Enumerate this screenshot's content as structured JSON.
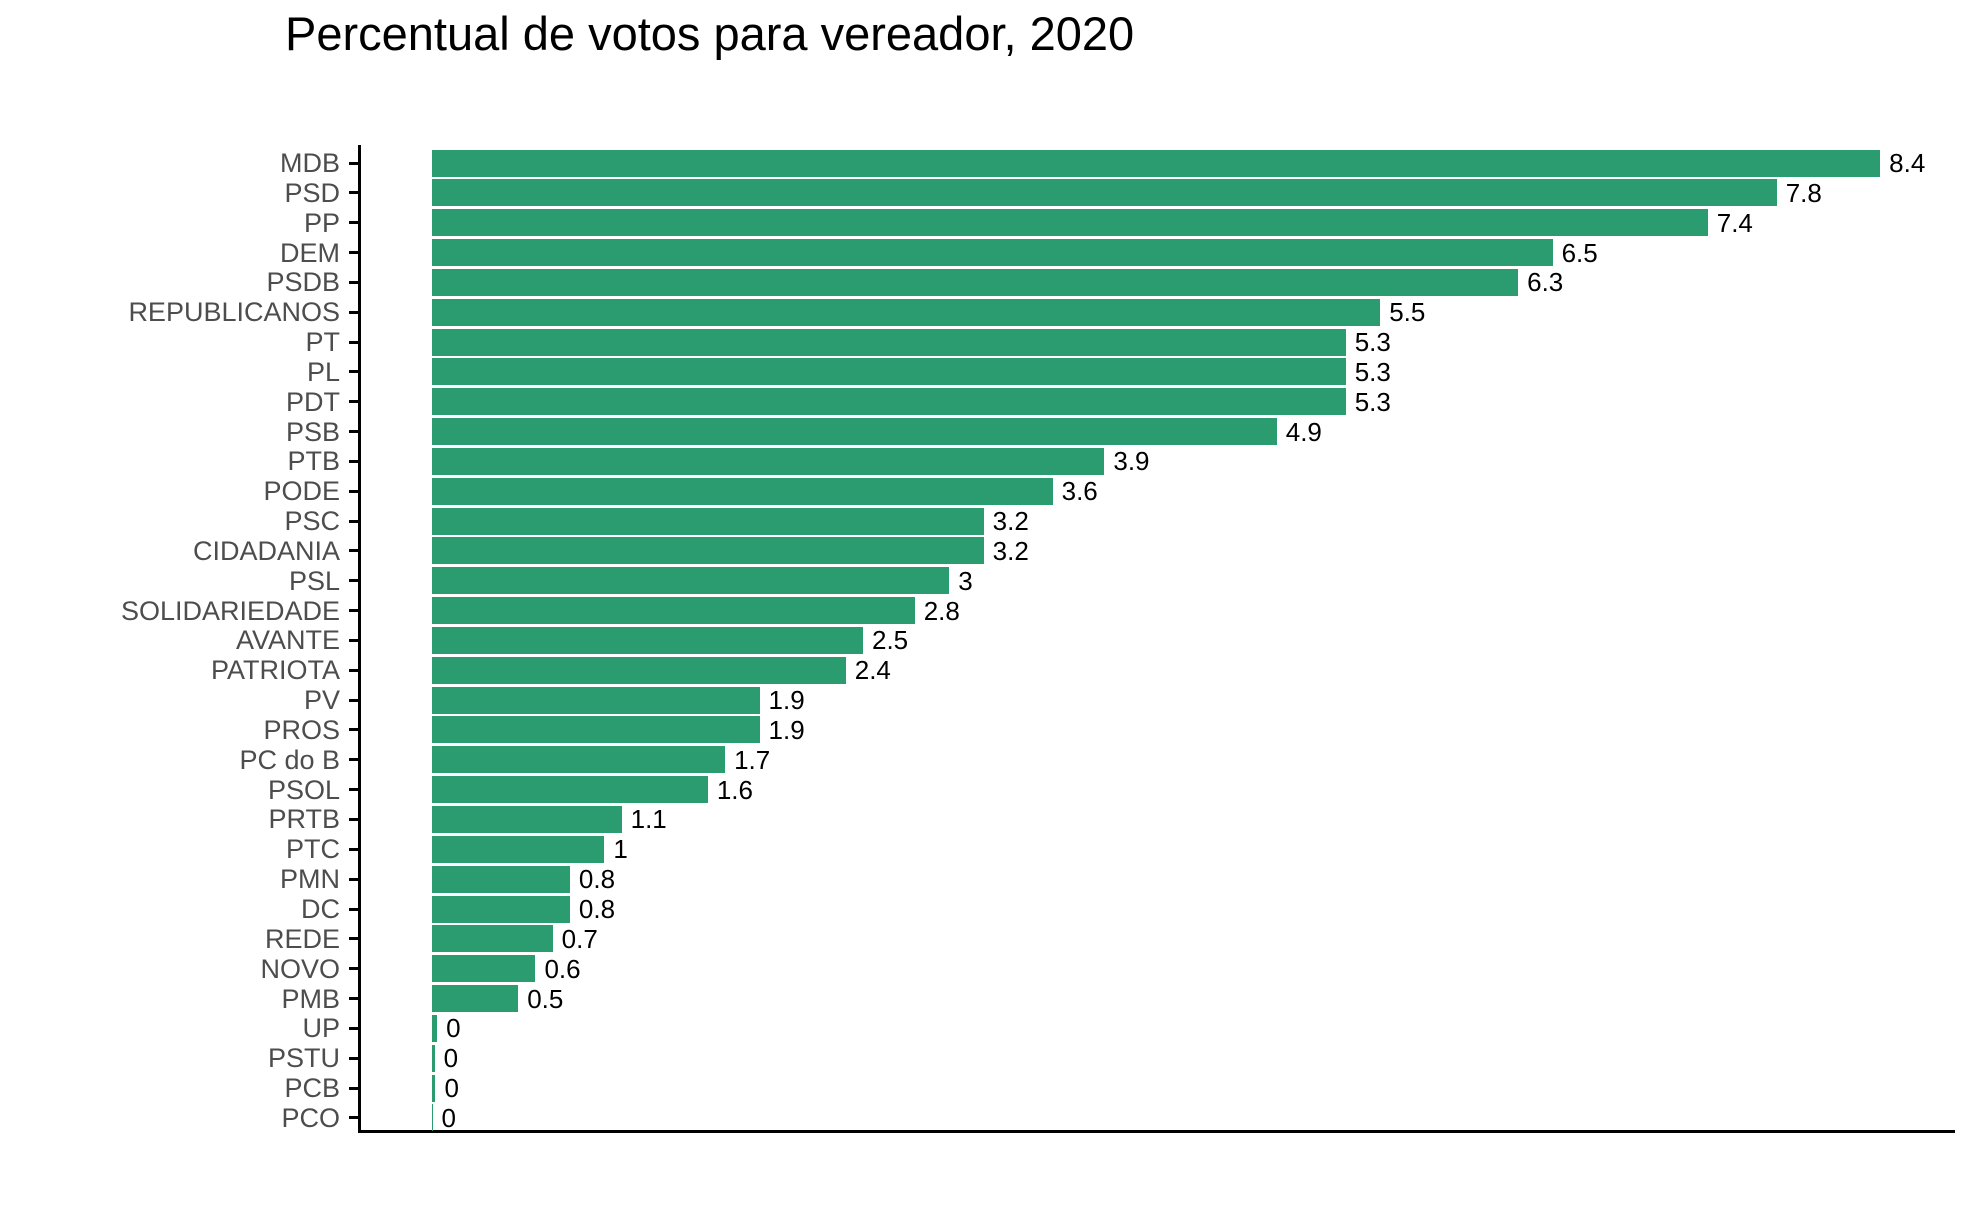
{
  "title": "Percentual de votos para vereador, 2020",
  "colors": {
    "bar": "#2b9b70",
    "axis_line": "#000000",
    "axis_text": "#4d4d4d",
    "value_label": "#000000",
    "background": "#ffffff"
  },
  "chart_data": {
    "type": "bar",
    "orientation": "horizontal",
    "title": "Percentual de votos para vereador, 2020",
    "xlabel": "",
    "ylabel": "",
    "grid": false,
    "legend": "none",
    "x_axis_tick_labels_visible": false,
    "xlim": [
      0,
      8.82
    ],
    "bar_color": "#2b9b70",
    "categories": [
      "MDB",
      "PSD",
      "PP",
      "DEM",
      "PSDB",
      "REPUBLICANOS",
      "PT",
      "PL",
      "PDT",
      "PSB",
      "PTB",
      "PODE",
      "PSC",
      "CIDADANIA",
      "PSL",
      "SOLIDARIEDADE",
      "AVANTE",
      "PATRIOTA",
      "PV",
      "PROS",
      "PC do B",
      "PSOL",
      "PRTB",
      "PTC",
      "PMN",
      "DC",
      "REDE",
      "NOVO",
      "PMB",
      "UP",
      "PSTU",
      "PCB",
      "PCO"
    ],
    "values": [
      8.4,
      7.8,
      7.4,
      6.5,
      6.3,
      5.5,
      5.3,
      5.3,
      5.3,
      4.9,
      3.9,
      3.6,
      3.2,
      3.2,
      3,
      2.8,
      2.5,
      2.4,
      1.9,
      1.9,
      1.7,
      1.6,
      1.1,
      1,
      0.8,
      0.8,
      0.7,
      0.6,
      0.5,
      0.03,
      0.015,
      0.02,
      0.003
    ],
    "value_labels": [
      "8.4",
      "7.8",
      "7.4",
      "6.5",
      "6.3",
      "5.5",
      "5.3",
      "5.3",
      "5.3",
      "4.9",
      "3.9",
      "3.6",
      "3.2",
      "3.2",
      "3",
      "2.8",
      "2.5",
      "2.4",
      "1.9",
      "1.9",
      "1.7",
      "1.6",
      "1.1",
      "1",
      "0.8",
      "0.8",
      "0.7",
      "0.6",
      "0.5",
      "0",
      "0",
      "0",
      "0"
    ]
  }
}
